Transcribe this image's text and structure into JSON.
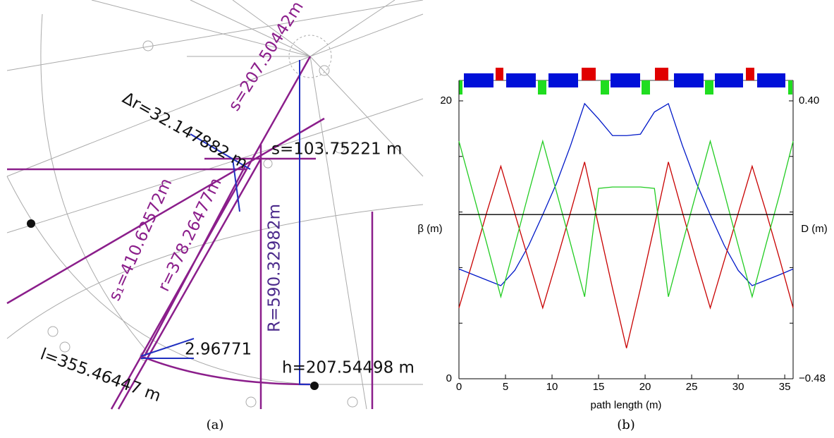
{
  "panel_a": {
    "labels": [
      "s=207.50442m",
      "Δr=32.147882 m",
      "s=103.75221 m",
      "s₁=410.62572m",
      "r=378.26477m",
      "R=590.32982m",
      "2.96771",
      "h=207.54498 m",
      "l=355.46447 m"
    ],
    "caption": "(a)"
  },
  "chart_data": {
    "type": "line",
    "caption": "(b)",
    "xlabel": "path length (m)",
    "ylabel": "β (m)",
    "y2label": "D (m)",
    "x": [
      0,
      1.5,
      3,
      4.5,
      6,
      7.5,
      9,
      10.5,
      12,
      13.5,
      15,
      16.5,
      18,
      19.5,
      21,
      22.5,
      24,
      25.5,
      27,
      28.5,
      30,
      31.5,
      33,
      34.5,
      35.9
    ],
    "series": [
      {
        "color": "#0018c8",
        "values": [
          7.9,
          7.5,
          7.1,
          6.7,
          7.8,
          9.6,
          11.8,
          14.1,
          16.8,
          19.8,
          18.7,
          17.5,
          17.5,
          17.6,
          19.2,
          19.8,
          16.8,
          14.1,
          11.8,
          9.6,
          7.8,
          6.7,
          7.1,
          7.5,
          7.9
        ]
      },
      {
        "color": "#c80000",
        "values": [
          5.1,
          8.5,
          12,
          15.3,
          11.9,
          8.5,
          5.1,
          8.5,
          12,
          15.6,
          11,
          6.5,
          2.2,
          6.5,
          11,
          15.6,
          12,
          8.5,
          5.1,
          8.5,
          11.9,
          15.3,
          12,
          8.5,
          5.1
        ]
      },
      {
        "color": "#22cc22",
        "values": [
          17.1,
          13.4,
          9.7,
          5.9,
          9.6,
          13.4,
          17.1,
          13.4,
          9.7,
          5.9,
          13.7,
          13.8,
          13.8,
          13.8,
          13.7,
          5.9,
          9.7,
          13.4,
          17.1,
          13.4,
          9.6,
          5.9,
          9.7,
          13.4,
          17.1
        ]
      },
      {
        "color": "#000000",
        "axis": "y2",
        "x": [
          0,
          35.9
        ],
        "values": [
          0.04,
          0.04
        ]
      }
    ],
    "xlim": [
      0,
      35.9
    ],
    "xticks": [
      0,
      5,
      10,
      15,
      20,
      25,
      30,
      35
    ],
    "ylim": [
      0,
      20
    ],
    "yticks": [
      0,
      20
    ],
    "yminorticks": [
      4,
      8,
      12,
      16
    ],
    "y2lim": [
      -0.48,
      0.4
    ],
    "y2ticks": [
      {
        "value": -0.48,
        "label": "−0.48"
      },
      {
        "value": 0.4,
        "label": "0.40"
      }
    ]
  }
}
